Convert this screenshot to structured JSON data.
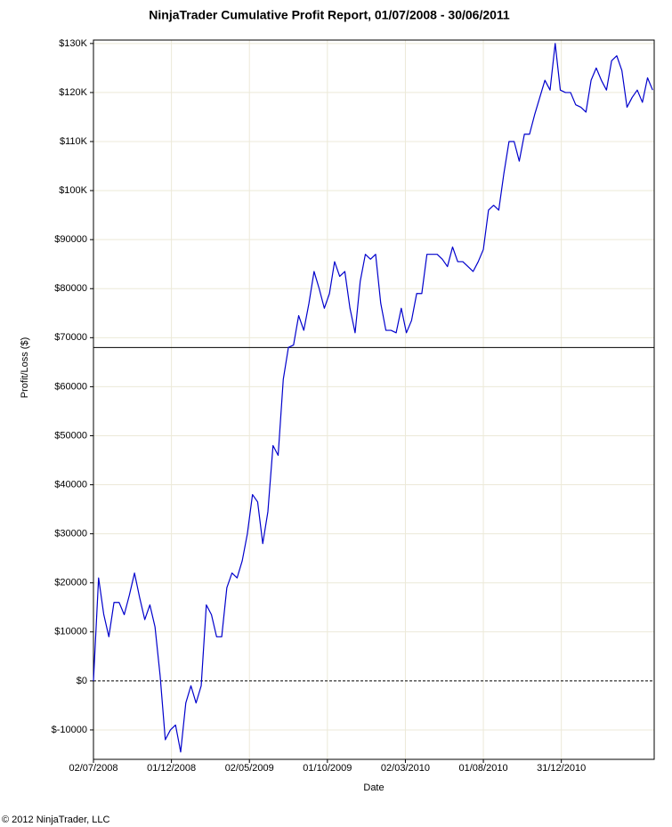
{
  "chart_data": {
    "type": "line",
    "title": "NinjaTrader Cumulative Profit Report, 01/07/2008 - 30/06/2011",
    "x_label": "Date",
    "y_label": "Profit/Loss ($)",
    "footer": "© 2012 NinjaTrader, LLC",
    "color": "#0000cc",
    "grid": true,
    "reference_line": 68000,
    "xlim": [
      "2008-07-02",
      "2011-06-30"
    ],
    "ylim": [
      -16000,
      130700
    ],
    "xticks": [
      {
        "value": "2008-07-02",
        "label": "02/07/2008"
      },
      {
        "value": "2008-12-01",
        "label": "01/12/2008"
      },
      {
        "value": "2009-05-02",
        "label": "02/05/2009"
      },
      {
        "value": "2009-10-01",
        "label": "01/10/2009"
      },
      {
        "value": "2010-03-02",
        "label": "02/03/2010"
      },
      {
        "value": "2010-08-01",
        "label": "01/08/2010"
      },
      {
        "value": "2010-12-31",
        "label": "31/12/2010"
      }
    ],
    "yticks": [
      {
        "value": 130000,
        "label": "$130K"
      },
      {
        "value": 120000,
        "label": "$120K"
      },
      {
        "value": 110000,
        "label": "$110K"
      },
      {
        "value": 100000,
        "label": "$100K"
      },
      {
        "value": 90000,
        "label": "$90000"
      },
      {
        "value": 80000,
        "label": "$80000"
      },
      {
        "value": 70000,
        "label": "$70000"
      },
      {
        "value": 60000,
        "label": "$60000"
      },
      {
        "value": 50000,
        "label": "$50000"
      },
      {
        "value": 40000,
        "label": "$40000"
      },
      {
        "value": 30000,
        "label": "$30000"
      },
      {
        "value": 20000,
        "label": "$20000"
      },
      {
        "value": 10000,
        "label": "$10000"
      },
      {
        "value": 0,
        "label": "$0"
      },
      {
        "value": -10000,
        "label": "$-10000"
      }
    ],
    "x": [
      "2008-07-02",
      "2008-07-12",
      "2008-07-22",
      "2008-08-01",
      "2008-08-11",
      "2008-08-21",
      "2008-08-31",
      "2008-09-10",
      "2008-09-20",
      "2008-09-30",
      "2008-10-10",
      "2008-10-20",
      "2008-10-30",
      "2008-11-09",
      "2008-11-19",
      "2008-11-29",
      "2008-12-09",
      "2008-12-19",
      "2008-12-29",
      "2009-01-08",
      "2009-01-18",
      "2009-01-28",
      "2009-02-07",
      "2009-02-17",
      "2009-02-27",
      "2009-03-09",
      "2009-03-19",
      "2009-03-29",
      "2009-04-08",
      "2009-04-18",
      "2009-04-28",
      "2009-05-08",
      "2009-05-18",
      "2009-05-28",
      "2009-06-07",
      "2009-06-17",
      "2009-06-27",
      "2009-07-07",
      "2009-07-17",
      "2009-07-27",
      "2009-08-06",
      "2009-08-16",
      "2009-08-26",
      "2009-09-05",
      "2009-09-15",
      "2009-09-25",
      "2009-10-05",
      "2009-10-15",
      "2009-10-25",
      "2009-11-04",
      "2009-11-14",
      "2009-11-24",
      "2009-12-04",
      "2009-12-14",
      "2009-12-24",
      "2010-01-03",
      "2010-01-13",
      "2010-01-23",
      "2010-02-02",
      "2010-02-12",
      "2010-02-22",
      "2010-03-04",
      "2010-03-14",
      "2010-03-24",
      "2010-04-03",
      "2010-04-13",
      "2010-04-23",
      "2010-05-03",
      "2010-05-13",
      "2010-05-23",
      "2010-06-02",
      "2010-06-12",
      "2010-06-22",
      "2010-07-02",
      "2010-07-12",
      "2010-07-22",
      "2010-08-01",
      "2010-08-11",
      "2010-08-21",
      "2010-08-31",
      "2010-09-10",
      "2010-09-20",
      "2010-09-30",
      "2010-10-10",
      "2010-10-20",
      "2010-10-30",
      "2010-11-09",
      "2010-11-19",
      "2010-11-29",
      "2010-12-09",
      "2010-12-19",
      "2010-12-29",
      "2011-01-08",
      "2011-01-18",
      "2011-01-28",
      "2011-02-07",
      "2011-02-17",
      "2011-02-27",
      "2011-03-09",
      "2011-03-19",
      "2011-03-29",
      "2011-04-08",
      "2011-04-18",
      "2011-04-28",
      "2011-05-08",
      "2011-05-18",
      "2011-05-28",
      "2011-06-07",
      "2011-06-17",
      "2011-06-27"
    ],
    "values": [
      0,
      21000,
      13600,
      9000,
      16000,
      16000,
      13500,
      17500,
      22000,
      17000,
      12500,
      15500,
      11000,
      1000,
      -12000,
      -10000,
      -9000,
      -14500,
      -4500,
      -1000,
      -4500,
      -1000,
      15500,
      13500,
      9000,
      9000,
      19000,
      22000,
      21000,
      24500,
      30000,
      38000,
      36500,
      28000,
      34500,
      48000,
      46000,
      61500,
      68000,
      68500,
      74500,
      71500,
      77000,
      83500,
      80000,
      76000,
      79000,
      85500,
      82500,
      83500,
      76000,
      71000,
      81500,
      87000,
      86000,
      87000,
      77000,
      71500,
      71500,
      71000,
      76000,
      71000,
      73500,
      79000,
      79000,
      87000,
      87000,
      87000,
      86000,
      84500,
      88500,
      85500,
      85500,
      84500,
      83500,
      85500,
      88000,
      96000,
      97000,
      96000,
      103500,
      110000,
      110000,
      106000,
      111500,
      111500,
      115500,
      119000,
      122500,
      120500,
      130000,
      120500,
      120000,
      120000,
      117500,
      117000,
      116000,
      122500,
      125000,
      122500,
      120500,
      126500,
      127500,
      124500,
      117000,
      119000,
      120500,
      118000,
      123000,
      120500
    ]
  }
}
